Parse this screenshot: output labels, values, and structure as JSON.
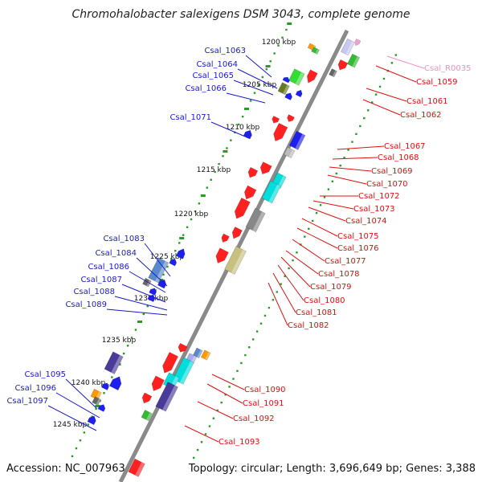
{
  "title": "Chromohalobacter salexigens DSM 3043, complete genome",
  "footer": {
    "accession": "Accession: NC_007963",
    "topology": "Topology: circular; Length: 3,696,649 bp; Genes: 3,388"
  },
  "colors": {
    "backbone": "#7a7a7a",
    "tick_dots": "#2a9a2a",
    "label_left": "#1a1acc",
    "label_right": "#e01010",
    "label_rna": "#f090c0"
  },
  "scale_labels": [
    "1200 kbp",
    "1205 kbp",
    "1210 kbp",
    "1215 kbp",
    "1220 kbp",
    "1225 kbp",
    "1230 kbp",
    "1235 kbp",
    "1240 kbp",
    "1245 kbp"
  ],
  "left_labels": [
    "Csal_1063",
    "Csal_1064",
    "Csal_1065",
    "Csal_1066",
    "Csal_1071",
    "Csal_1083",
    "Csal_1084",
    "Csal_1086",
    "Csal_1087",
    "Csal_1088",
    "Csal_1089",
    "Csal_1095",
    "Csal_1096",
    "Csal_1097"
  ],
  "right_labels": [
    "Csal_R0035",
    "Csal_1059",
    "Csal_1061",
    "Csal_1062",
    "Csal_1067",
    "Csal_1068",
    "Csal_1069",
    "Csal_1070",
    "Csal_1072",
    "Csal_1073",
    "Csal_1074",
    "Csal_1075",
    "Csal_1076",
    "Csal_1077",
    "Csal_1078",
    "Csal_1079",
    "Csal_1080",
    "Csal_1081",
    "Csal_1082",
    "Csal_1090",
    "Csal_1091",
    "Csal_1092",
    "Csal_1093"
  ]
}
